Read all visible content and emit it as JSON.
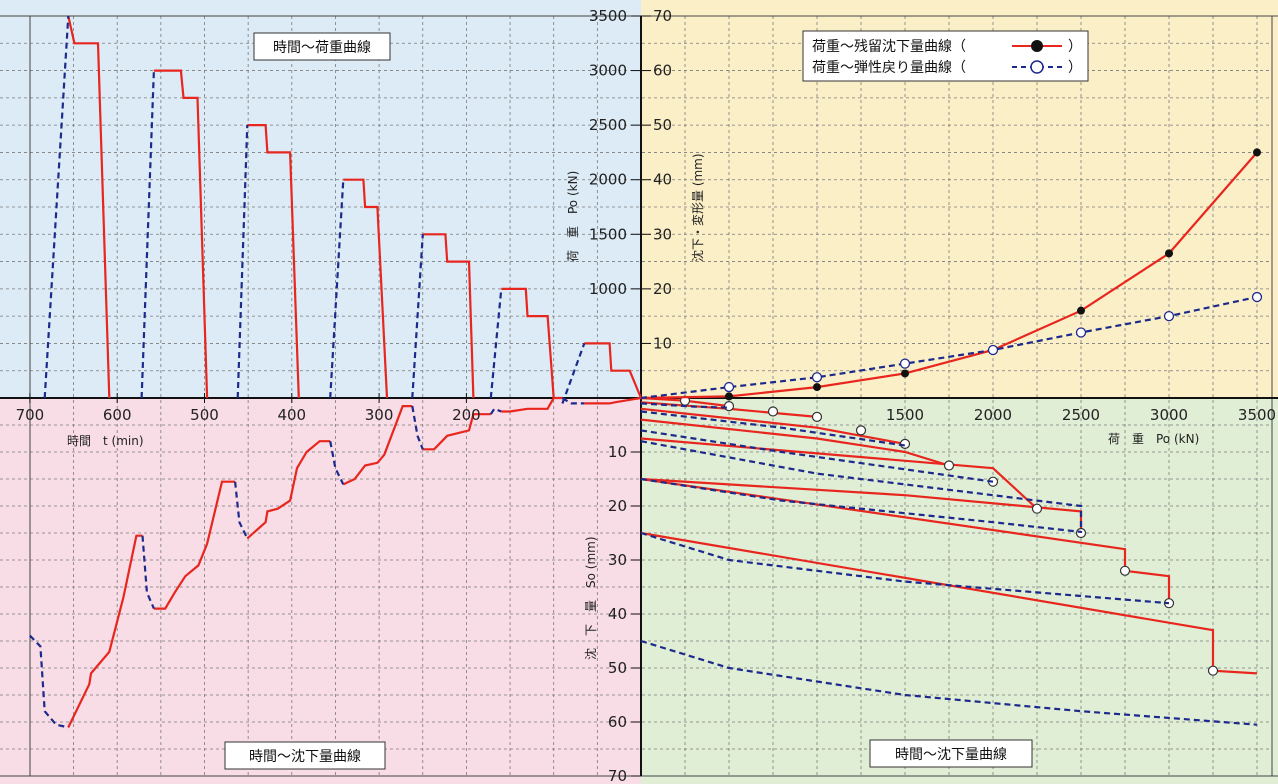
{
  "chart_data": [
    {
      "type": "line",
      "panel": "top-left",
      "title": "時間〜荷重曲線",
      "xlabel": "時間　t (min)",
      "ylabel": "荷　重　Po (kN)",
      "x_ticks": [
        "700",
        "600",
        "500",
        "400",
        "300",
        "200"
      ],
      "y_ticks": [
        "3500",
        "3000",
        "2500",
        "2000",
        "1500",
        "1000"
      ],
      "xlim": [
        700,
        0
      ],
      "ylim": [
        0,
        3500
      ],
      "grid": true,
      "series": [
        {
          "style": "solid-red",
          "segments": [
            [
              [
                656,
                3500
              ],
              [
                649,
                3250
              ],
              [
                622,
                3250
              ],
              [
                609,
                0
              ]
            ],
            [
              [
                558,
                3000
              ],
              [
                527,
                3000
              ],
              [
                524,
                2750
              ],
              [
                508,
                2750
              ],
              [
                497,
                0
              ]
            ],
            [
              [
                451,
                2500
              ],
              [
                430,
                2500
              ],
              [
                428,
                2250
              ],
              [
                402,
                2250
              ],
              [
                392,
                0
              ]
            ],
            [
              [
                341,
                2000
              ],
              [
                318,
                2000
              ],
              [
                316,
                1750
              ],
              [
                302,
                1750
              ],
              [
                291,
                0
              ]
            ],
            [
              [
                250,
                1500
              ],
              [
                224,
                1500
              ],
              [
                222,
                1250
              ],
              [
                197,
                1250
              ],
              [
                192,
                0
              ]
            ],
            [
              [
                160,
                1000
              ],
              [
                132,
                1000
              ],
              [
                130,
                750
              ],
              [
                107,
                750
              ],
              [
                100,
                0
              ]
            ],
            [
              [
                65,
                500
              ],
              [
                36,
                500
              ],
              [
                34,
                250
              ],
              [
                13,
                250
              ],
              [
                0,
                0
              ]
            ]
          ]
        },
        {
          "style": "dashed-blue",
          "segments": [
            [
              [
                683,
                0
              ],
              [
                656,
                3500
              ]
            ],
            [
              [
                572,
                0
              ],
              [
                558,
                3000
              ]
            ],
            [
              [
                462,
                0
              ],
              [
                451,
                2500
              ]
            ],
            [
              [
                356,
                0
              ],
              [
                341,
                2000
              ]
            ],
            [
              [
                262,
                0
              ],
              [
                250,
                1500
              ]
            ],
            [
              [
                172,
                0
              ],
              [
                160,
                1000
              ]
            ],
            [
              [
                90,
                -50
              ],
              [
                65,
                500
              ]
            ]
          ]
        }
      ]
    },
    {
      "type": "line",
      "panel": "top-right",
      "xlabel": "荷　重　Po (kN)",
      "ylabel": "沈下・変形量 (mm)",
      "x_ticks": [
        "1500",
        "2000",
        "2500",
        "3000",
        "3500"
      ],
      "y_ticks": [
        "70",
        "60",
        "50",
        "40",
        "30",
        "20",
        "10"
      ],
      "xlim": [
        0,
        3500
      ],
      "ylim": [
        0,
        70
      ],
      "grid": true,
      "legend": "top-right",
      "series": [
        {
          "name": "荷重〜残留沈下量曲線",
          "style": "solid-red-filled",
          "x": [
            0,
            500,
            1000,
            1500,
            2000,
            2500,
            3000,
            3500
          ],
          "y": [
            0,
            0.3,
            2.0,
            4.5,
            8.8,
            16.0,
            26.5,
            45.0
          ]
        },
        {
          "name": "荷重〜弾性戻り量曲線",
          "style": "dashed-blue-open",
          "x": [
            0,
            500,
            1000,
            1500,
            2000,
            2500,
            3000,
            3500
          ],
          "y": [
            0,
            2.0,
            3.8,
            6.3,
            8.8,
            12.0,
            15.0,
            18.5
          ]
        }
      ]
    },
    {
      "type": "line",
      "panel": "bottom-left",
      "title": "時間〜沈下量曲線",
      "xlim": [
        700,
        0
      ],
      "ylim": [
        0,
        70
      ],
      "grid": true,
      "series": [
        {
          "style": "solid-red",
          "segments": [
            [
              [
                656,
                61
              ],
              [
                632,
                53
              ],
              [
                630,
                51
              ],
              [
                609,
                47
              ],
              [
                593,
                37
              ],
              [
                578,
                25.5
              ],
              [
                571,
                25.5
              ]
            ],
            [
              [
                558,
                39
              ],
              [
                545,
                39
              ],
              [
                534,
                36
              ],
              [
                522,
                33
              ],
              [
                507,
                31
              ],
              [
                497,
                27
              ],
              [
                480,
                15.5
              ],
              [
                465,
                15.5
              ]
            ],
            [
              [
                451,
                26
              ],
              [
                430,
                23
              ],
              [
                428,
                21
              ],
              [
                416,
                20.5
              ],
              [
                402,
                19
              ],
              [
                394,
                13
              ],
              [
                383,
                10
              ],
              [
                368,
                8
              ],
              [
                356,
                8
              ]
            ],
            [
              [
                341,
                16
              ],
              [
                328,
                15
              ],
              [
                316,
                12.5
              ],
              [
                302,
                12
              ],
              [
                294,
                10.5
              ],
              [
                273,
                1.5
              ],
              [
                262,
                1.5
              ]
            ],
            [
              [
                250,
                9.5
              ],
              [
                237,
                9.5
              ],
              [
                222,
                7
              ],
              [
                197,
                6
              ],
              [
                192,
                3
              ],
              [
                172,
                3
              ]
            ],
            [
              [
                160,
                2.5
              ],
              [
                150,
                2.5
              ],
              [
                130,
                2
              ],
              [
                107,
                2
              ],
              [
                100,
                0
              ],
              [
                90,
                0
              ]
            ],
            [
              [
                65,
                1
              ],
              [
                36,
                1
              ],
              [
                30,
                0.8
              ],
              [
                0,
                0
              ]
            ]
          ]
        },
        {
          "style": "dashed-blue",
          "segments": [
            [
              [
                700,
                44
              ],
              [
                688,
                46
              ],
              [
                683,
                58
              ],
              [
                670,
                60.5
              ],
              [
                656,
                61
              ]
            ],
            [
              [
                571,
                25.5
              ],
              [
                566,
                36
              ],
              [
                558,
                39
              ]
            ],
            [
              [
                465,
                15.5
              ],
              [
                460,
                23
              ],
              [
                451,
                26
              ]
            ],
            [
              [
                356,
                8
              ],
              [
                350,
                13
              ],
              [
                341,
                16
              ]
            ],
            [
              [
                262,
                1.5
              ],
              [
                256,
                7
              ],
              [
                250,
                9.5
              ]
            ],
            [
              [
                172,
                3
              ],
              [
                168,
                2
              ],
              [
                160,
                2.5
              ]
            ],
            [
              [
                90,
                0
              ],
              [
                80,
                1
              ],
              [
                65,
                1
              ]
            ]
          ]
        }
      ]
    },
    {
      "type": "line",
      "panel": "bottom-right",
      "title": "時間〜沈下量曲線",
      "ylabel": "沈　下　量　So (mm)",
      "y_ticks": [
        "10",
        "20",
        "30",
        "40",
        "50",
        "60",
        "70"
      ],
      "ylim": [
        0,
        70
      ],
      "grid": true,
      "series": [
        {
          "style": "solid-red-open",
          "segments": [
            [
              [
                0,
                0
              ],
              [
                250,
                0.5
              ],
              [
                500,
                1.5
              ]
            ],
            [
              [
                0,
                0.8
              ],
              [
                500,
                2
              ],
              [
                1000,
                3.5
              ]
            ],
            [
              [
                0,
                2
              ],
              [
                1000,
                5.5
              ],
              [
                1500,
                8.5
              ]
            ],
            [
              [
                0,
                4
              ],
              [
                1000,
                7.5
              ],
              [
                1500,
                10
              ],
              [
                1750,
                12.5
              ]
            ],
            [
              [
                0,
                7.5
              ],
              [
                2000,
                13
              ],
              [
                2250,
                20.5
              ]
            ],
            [
              [
                0,
                15
              ],
              [
                1500,
                18
              ],
              [
                2500,
                21
              ],
              [
                2500,
                25
              ]
            ],
            [
              [
                0,
                15
              ],
              [
                2750,
                28
              ],
              [
                2750,
                32
              ],
              [
                3000,
                33
              ],
              [
                3000,
                38
              ]
            ],
            [
              [
                0,
                25
              ],
              [
                3250,
                43
              ],
              [
                3250,
                50.5
              ],
              [
                3500,
                51
              ]
            ]
          ],
          "markers": [
            [
              250,
              0.5
            ],
            [
              500,
              1.5
            ],
            [
              750,
              2.5
            ],
            [
              1000,
              3.5
            ],
            [
              1250,
              6
            ],
            [
              1500,
              8.5
            ],
            [
              1750,
              12.5
            ],
            [
              2000,
              15.5
            ],
            [
              2250,
              20.5
            ],
            [
              2500,
              25
            ],
            [
              2750,
              32
            ],
            [
              3000,
              38
            ],
            [
              3250,
              50.5
            ]
          ]
        },
        {
          "style": "dashed-blue",
          "segments": [
            [
              [
                0,
                1
              ],
              [
                300,
                1.6
              ],
              [
                500,
                1.8
              ]
            ],
            [
              [
                0,
                2.5
              ],
              [
                800,
                5.5
              ],
              [
                1500,
                8.8
              ]
            ],
            [
              [
                0,
                6
              ],
              [
                800,
                10
              ],
              [
                2000,
                15.5
              ]
            ],
            [
              [
                0,
                8
              ],
              [
                1000,
                14
              ],
              [
                2500,
                20
              ],
              [
                2500,
                25
              ]
            ],
            [
              [
                0,
                15
              ],
              [
                800,
                19
              ],
              [
                2000,
                23
              ],
              [
                2500,
                24.8
              ]
            ],
            [
              [
                0,
                25
              ],
              [
                500,
                30
              ],
              [
                1500,
                34
              ],
              [
                3000,
                38
              ]
            ],
            [
              [
                0,
                45
              ],
              [
                500,
                50
              ],
              [
                1500,
                55
              ],
              [
                2500,
                58
              ],
              [
                3500,
                60.5
              ]
            ]
          ]
        }
      ]
    }
  ],
  "labels": {
    "title_top_left": "時間〜荷重曲線",
    "title_bottom_left": "時間〜沈下量曲線",
    "title_bottom_right": "時間〜沈下量曲線",
    "time_axis": "時間　t (min)",
    "load_axis": "荷　重　Po (kN)",
    "load_axis_right": "荷　重　Po (kN)",
    "settle_axis": "沈下・変形量 (mm)",
    "settle_axis_bottom": "沈　下　量　So (mm)",
    "legend_1": "荷重〜残留沈下量曲線（",
    "legend_2": "荷重〜弾性戻り量曲線（",
    "legend_close": "）"
  },
  "colors": {
    "top_left_bg": "#dcebf5",
    "top_right_bg": "#fbefc8",
    "bottom_left_bg": "#f8dce6",
    "bottom_right_bg": "#e0eed6",
    "red": "#e8261e",
    "blue": "#1c2a8c"
  }
}
